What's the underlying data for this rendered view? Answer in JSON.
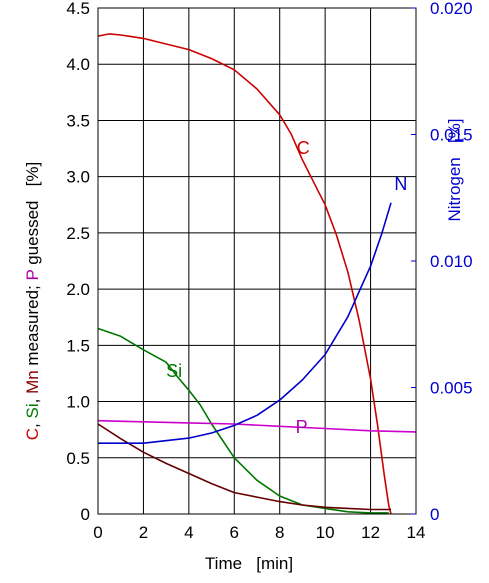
{
  "chart_data": {
    "type": "line",
    "xlabel": "Time   [min]",
    "ylabel_parts": [
      {
        "text": "C",
        "color": "#cc0000"
      },
      {
        "text": ", ",
        "color": "#000000"
      },
      {
        "text": "Si",
        "color": "#007700"
      },
      {
        "text": ", ",
        "color": "#000000"
      },
      {
        "text": "Mn",
        "color": "#880000"
      },
      {
        "text": " measured; ",
        "color": "#000000"
      },
      {
        "text": "P",
        "color": "#aa00aa"
      },
      {
        "text": " guessed   [%]",
        "color": "#000000"
      }
    ],
    "ylabel_right": "Nitrogen   [%]",
    "xlim": [
      0,
      14
    ],
    "ylim": [
      0,
      4.5
    ],
    "ylim_right": [
      0,
      0.02
    ],
    "x_ticks": [
      "0",
      "2",
      "4",
      "6",
      "8",
      "10",
      "12",
      "14"
    ],
    "y_ticks": [
      "0",
      "0.5",
      "1.0",
      "1.5",
      "2.0",
      "2.5",
      "3.0",
      "3.5",
      "4.0",
      "4.5"
    ],
    "y_right_ticks": [
      "0",
      "0.005",
      "0.010",
      "0.015",
      "0.020"
    ],
    "grid": true,
    "series": [
      {
        "name": "C",
        "color": "#cc0000",
        "axis": "left",
        "x": [
          0,
          0.5,
          1,
          2,
          3,
          4,
          5,
          6,
          7,
          8,
          8.5,
          9,
          10,
          10.5,
          11,
          11.5,
          12,
          12.3,
          12.6,
          12.8,
          12.9
        ],
        "y": [
          4.25,
          4.27,
          4.26,
          4.23,
          4.18,
          4.13,
          4.05,
          3.95,
          3.78,
          3.55,
          3.38,
          3.15,
          2.75,
          2.48,
          2.15,
          1.72,
          1.2,
          0.8,
          0.35,
          0.08,
          0
        ]
      },
      {
        "name": "Si",
        "color": "#007700",
        "axis": "left",
        "x": [
          0,
          1,
          2,
          3,
          3.5,
          4,
          4.5,
          5,
          6,
          7,
          8,
          9,
          10,
          11,
          12,
          12.8
        ],
        "y": [
          1.65,
          1.58,
          1.46,
          1.35,
          1.22,
          1.1,
          0.97,
          0.8,
          0.5,
          0.3,
          0.16,
          0.08,
          0.05,
          0.02,
          0.01,
          0.01
        ]
      },
      {
        "name": "Mn",
        "color": "#660000",
        "axis": "left",
        "x": [
          0,
          1,
          2,
          3,
          4,
          5,
          6,
          7,
          8,
          9,
          10,
          11,
          12,
          12.9
        ],
        "y": [
          0.8,
          0.67,
          0.55,
          0.45,
          0.36,
          0.27,
          0.19,
          0.15,
          0.11,
          0.08,
          0.06,
          0.05,
          0.04,
          0.04
        ]
      },
      {
        "name": "P",
        "color": "#cc00cc",
        "axis": "left",
        "x": [
          0,
          2,
          4,
          6,
          8,
          10,
          12,
          14
        ],
        "y": [
          0.83,
          0.82,
          0.81,
          0.8,
          0.78,
          0.76,
          0.74,
          0.73
        ]
      },
      {
        "name": "N",
        "color": "#0000cc",
        "axis": "right",
        "x": [
          0,
          2,
          4,
          5,
          6,
          7,
          8,
          9,
          10,
          11,
          11.5,
          12,
          12.5,
          12.9
        ],
        "y": [
          0.0028,
          0.0028,
          0.003,
          0.0032,
          0.0035,
          0.0039,
          0.0045,
          0.0053,
          0.0063,
          0.0078,
          0.0088,
          0.0098,
          0.0111,
          0.0123
        ]
      }
    ],
    "annotations": [
      {
        "text": "C",
        "color": "#cc0000",
        "x": 8.75,
        "y": 3.2,
        "axis": "left"
      },
      {
        "text": "Si",
        "color": "#007700",
        "x": 3.0,
        "y": 1.22,
        "axis": "left"
      },
      {
        "text": "P",
        "color": "#aa00aa",
        "x": 8.7,
        "y": 0.72,
        "axis": "left"
      },
      {
        "text": "N",
        "color": "#0000cc",
        "x": 13.05,
        "y": 0.0128,
        "axis": "right"
      }
    ]
  }
}
